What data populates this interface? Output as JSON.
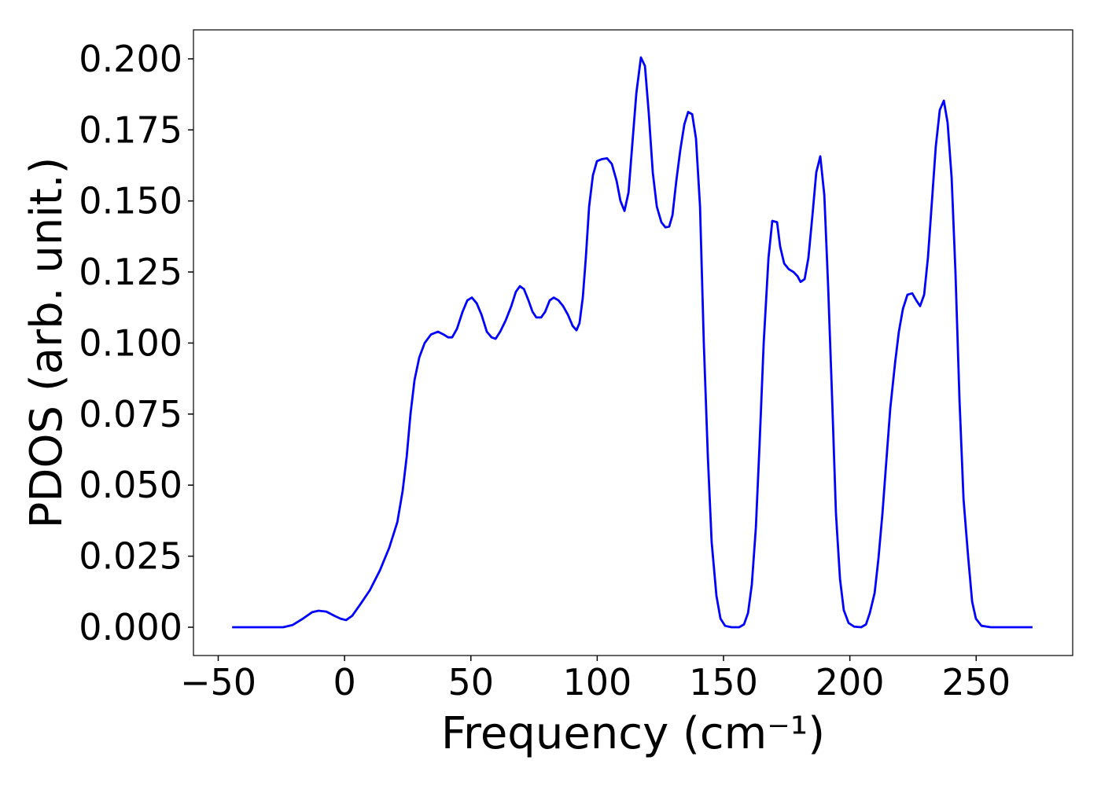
{
  "chart_data": {
    "type": "line",
    "xlabel": "Frequency (cm⁻¹)",
    "ylabel": "PDOS (arb. unit.)",
    "xlim": [
      -59.8,
      288.2
    ],
    "ylim": [
      -0.00996,
      0.2102
    ],
    "xticks": [
      {
        "value": -50,
        "label": "−50"
      },
      0,
      50,
      100,
      150,
      200,
      250
    ],
    "yticks": [
      {
        "value": 0,
        "label": "0.000"
      },
      {
        "value": 0.025,
        "label": "0.025"
      },
      {
        "value": 0.05,
        "label": "0.050"
      },
      {
        "value": 0.075,
        "label": "0.075"
      },
      {
        "value": 0.1,
        "label": "0.100"
      },
      {
        "value": 0.125,
        "label": "0.125"
      },
      {
        "value": 0.15,
        "label": "0.150"
      },
      {
        "value": 0.175,
        "label": "0.175"
      },
      {
        "value": 0.2,
        "label": "0.200"
      }
    ],
    "grid": false,
    "x": [
      -44.5,
      -24.3,
      -20.5,
      -16.5,
      -12.8,
      -10.3,
      -7.2,
      -4,
      -1.6,
      0.6,
      3,
      6.2,
      10,
      14,
      17.7,
      20.9,
      23,
      24.6,
      26.1,
      27.7,
      29.6,
      31.7,
      34.2,
      37,
      39.2,
      41,
      42.6,
      44.5,
      46.7,
      48.6,
      50.4,
      52.3,
      54.2,
      56.3,
      58.2,
      59.8,
      61.6,
      63.8,
      66,
      67.8,
      69.4,
      71,
      72.8,
      74.4,
      75.9,
      77.8,
      79.4,
      81.2,
      82.8,
      84.7,
      86.5,
      88.4,
      90.3,
      91.8,
      93,
      94.3,
      95.5,
      96.8,
      98.3,
      99.9,
      101.8,
      103.9,
      105.8,
      107.7,
      109.2,
      110.8,
      112.4,
      113.9,
      115.5,
      117.3,
      118.9,
      120.4,
      122,
      123.6,
      125.4,
      127,
      128.5,
      129.8,
      131.3,
      132.9,
      134.5,
      136,
      137.6,
      139.1,
      140.7,
      142.2,
      143.8,
      145.3,
      147.2,
      148.8,
      150.6,
      153.1,
      156.2,
      158.1,
      159.7,
      161.2,
      162.8,
      164.3,
      165.9,
      167.8,
      169.3,
      171.2,
      172.4,
      174,
      175.8,
      177.7,
      179.3,
      180.5,
      182.1,
      183.6,
      185.2,
      186.7,
      188.3,
      189.9,
      191.4,
      193,
      194.5,
      196.1,
      197.6,
      199.5,
      201.7,
      204.5,
      206.4,
      207.9,
      209.8,
      211.3,
      212.9,
      214.4,
      216,
      217.9,
      219.4,
      221,
      222.8,
      224.7,
      226.3,
      227.8,
      229.4,
      230.9,
      232.5,
      234,
      235.6,
      237.2,
      238.7,
      240.3,
      241.8,
      243.4,
      245,
      246.8,
      248.4,
      249.9,
      252.1,
      255.8,
      272.3
    ],
    "series": [
      {
        "color": "#0000ff",
        "values": [
          0,
          0,
          0.0008,
          0.003,
          0.0053,
          0.0058,
          0.0055,
          0.004,
          0.003,
          0.0025,
          0.004,
          0.008,
          0.013,
          0.02,
          0.028,
          0.037,
          0.048,
          0.06,
          0.075,
          0.087,
          0.095,
          0.1,
          0.103,
          0.104,
          0.103,
          0.102,
          0.102,
          0.105,
          0.111,
          0.115,
          0.116,
          0.114,
          0.11,
          0.104,
          0.102,
          0.1015,
          0.104,
          0.108,
          0.113,
          0.118,
          0.12,
          0.119,
          0.115,
          0.111,
          0.109,
          0.109,
          0.111,
          0.115,
          0.116,
          0.115,
          0.113,
          0.11,
          0.106,
          0.1045,
          0.107,
          0.116,
          0.13,
          0.148,
          0.159,
          0.164,
          0.1647,
          0.165,
          0.163,
          0.157,
          0.15,
          0.1465,
          0.153,
          0.17,
          0.188,
          0.2005,
          0.1975,
          0.181,
          0.16,
          0.148,
          0.1425,
          0.1407,
          0.141,
          0.145,
          0.157,
          0.168,
          0.177,
          0.1813,
          0.1805,
          0.172,
          0.148,
          0.1,
          0.06,
          0.03,
          0.011,
          0.003,
          0.0005,
          0,
          0,
          0.001,
          0.005,
          0.015,
          0.035,
          0.065,
          0.1,
          0.13,
          0.143,
          0.1425,
          0.134,
          0.128,
          0.126,
          0.125,
          0.1235,
          0.1215,
          0.1225,
          0.13,
          0.145,
          0.16,
          0.1657,
          0.152,
          0.12,
          0.08,
          0.04,
          0.017,
          0.006,
          0.0015,
          0.0002,
          0,
          0.001,
          0.005,
          0.012,
          0.024,
          0.04,
          0.058,
          0.077,
          0.093,
          0.104,
          0.112,
          0.117,
          0.1175,
          0.115,
          0.113,
          0.117,
          0.13,
          0.15,
          0.169,
          0.182,
          0.1853,
          0.1775,
          0.158,
          0.125,
          0.08,
          0.045,
          0.025,
          0.009,
          0.003,
          0.0005,
          0,
          0
        ]
      }
    ]
  }
}
